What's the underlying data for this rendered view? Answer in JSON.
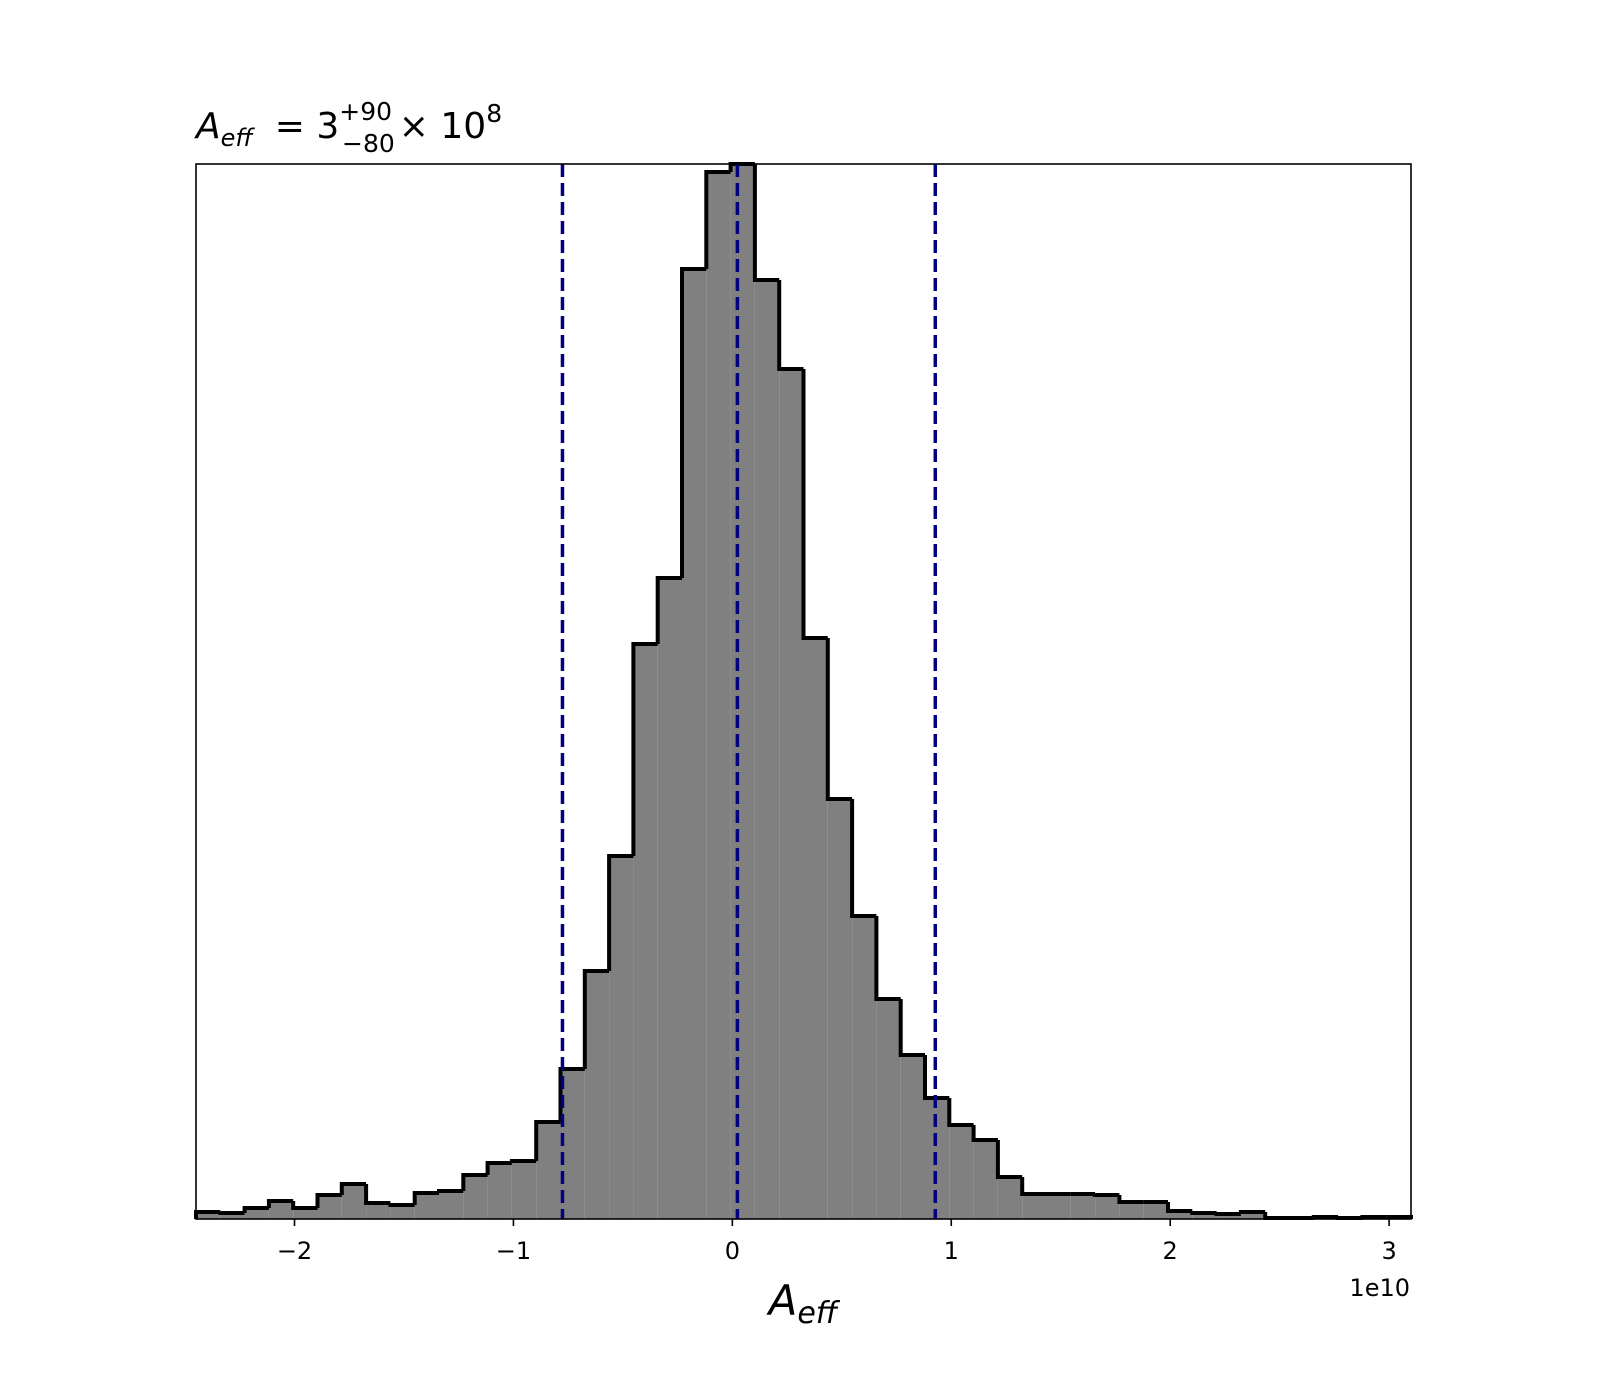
{
  "chart_data": {
    "type": "histogram",
    "title_parts": [
      "A",
      "eff",
      "= 3",
      "+90",
      "−80",
      "× 10",
      "8"
    ],
    "xlabel_parts": [
      "A",
      "eff"
    ],
    "x_offset_label": "1e10",
    "bins": [
      -2.45,
      -2.339,
      -2.228,
      -2.117,
      -2.006,
      -1.895,
      -1.784,
      -1.673,
      -1.562,
      -1.451,
      -1.34,
      -1.229,
      -1.118,
      -1.007,
      -0.896,
      -0.785,
      -0.674,
      -0.563,
      -0.452,
      -0.341,
      -0.23,
      -0.119,
      -0.008,
      0.103,
      0.214,
      0.325,
      0.436,
      0.547,
      0.658,
      0.769,
      0.88,
      0.991,
      1.102,
      1.213,
      1.324,
      1.435,
      1.546,
      1.657,
      1.768,
      1.879,
      1.99,
      2.101,
      2.212,
      2.323,
      2.434,
      2.545,
      2.656,
      2.767,
      2.878,
      2.989,
      3.1
    ],
    "values": [
      0.7,
      0.6,
      1.1,
      1.8,
      1.1,
      2.4,
      3.5,
      1.6,
      1.4,
      2.6,
      2.8,
      4.4,
      5.6,
      5.8,
      9.7,
      15.0,
      24.8,
      36.3,
      57.5,
      64.1,
      95.0,
      104.7,
      105.5,
      93.9,
      85.0,
      58.1,
      42.0,
      30.3,
      22.0,
      16.4,
      12.1,
      9.4,
      7.9,
      4.2,
      2.5,
      2.5,
      2.5,
      2.4,
      1.7,
      1.7,
      0.8,
      0.6,
      0.5,
      0.7,
      0.1,
      0.1,
      0.2,
      0.1,
      0.2,
      0.2
    ],
    "color": "#808080",
    "edge_color": "#000000",
    "xlim": [
      -2.45,
      3.1
    ],
    "ylim": [
      0,
      105.5
    ],
    "xticks": [
      {
        "value": -2,
        "label": "−2"
      },
      {
        "value": -1,
        "label": "−1"
      },
      0,
      1,
      2,
      3
    ],
    "vlines": [
      -0.776,
      0.023,
      0.927
    ],
    "vline_color": "#000080"
  }
}
